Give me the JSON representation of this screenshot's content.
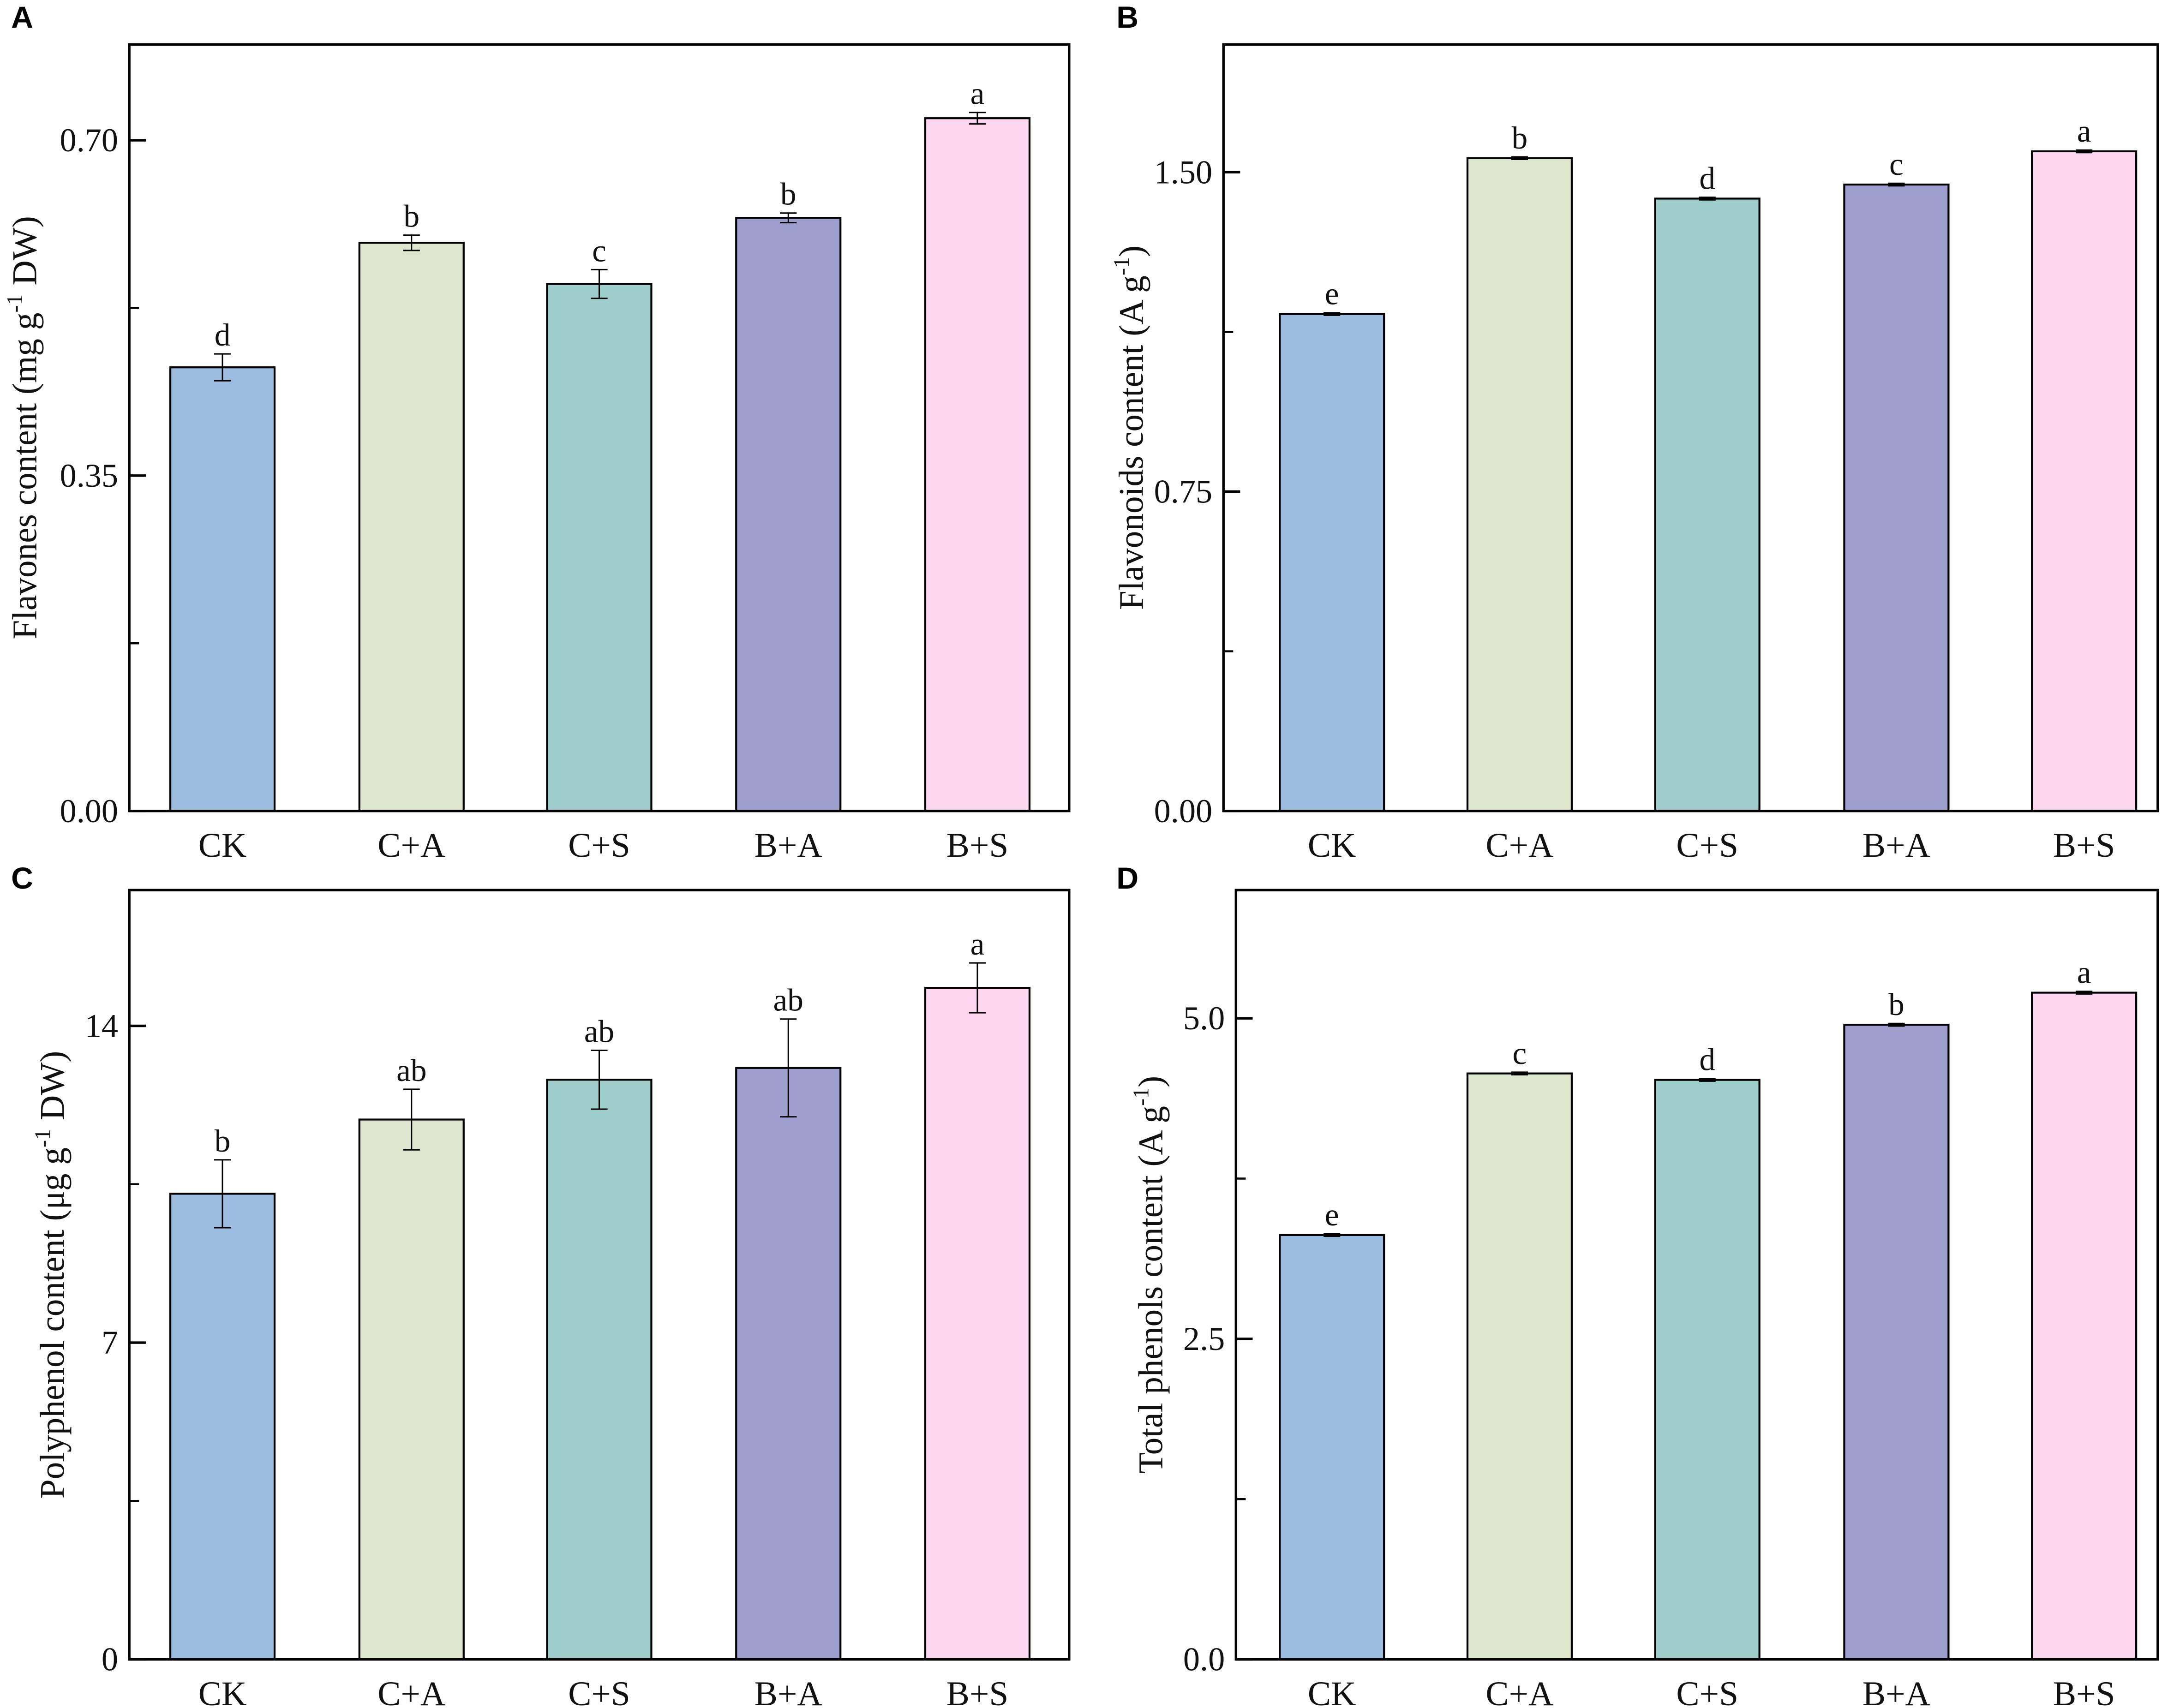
{
  "chart_data": [
    {
      "panel": "A",
      "type": "bar",
      "categories": [
        "CK",
        "C+A",
        "C+S",
        "B+A",
        "B+S"
      ],
      "values": [
        0.463,
        0.593,
        0.55,
        0.619,
        0.723
      ],
      "errors": [
        0.014,
        0.008,
        0.015,
        0.005,
        0.006
      ],
      "significance": [
        "d",
        "b",
        "c",
        "b",
        "a"
      ],
      "ylabel": {
        "pre": "Flavones content (mg g",
        "sup": "-1",
        "post": " DW)"
      },
      "xlabel": "",
      "ylim": [
        0,
        0.8
      ],
      "yticks": [
        0,
        0.35,
        0.7
      ],
      "ytick_labels": [
        "0.00",
        "0.35",
        "0.70"
      ],
      "minor_ticks": [
        0.175,
        0.525
      ],
      "grid": false
    },
    {
      "panel": "B",
      "type": "bar",
      "categories": [
        "CK",
        "C+A",
        "C+S",
        "B+A",
        "B+S"
      ],
      "values": [
        1.167,
        1.533,
        1.438,
        1.471,
        1.549
      ],
      "errors": [
        0.003,
        0.003,
        0.003,
        0.003,
        0.003
      ],
      "significance": [
        "e",
        "b",
        "d",
        "c",
        "a"
      ],
      "ylabel": {
        "pre": "Flavonoids content (A g",
        "sup": "-1",
        "post": ")"
      },
      "xlabel": "",
      "ylim": [
        0,
        1.8
      ],
      "yticks": [
        0,
        0.75,
        1.5
      ],
      "ytick_labels": [
        "0.00",
        "0.75",
        "1.50"
      ],
      "minor_ticks": [
        0.375,
        1.125
      ],
      "grid": false
    },
    {
      "panel": "C",
      "type": "bar",
      "categories": [
        "CK",
        "C+A",
        "C+S",
        "B+A",
        "B+S"
      ],
      "values": [
        10.29,
        11.93,
        12.81,
        13.07,
        14.84
      ],
      "errors": [
        0.75,
        0.67,
        0.65,
        1.08,
        0.55
      ],
      "significance": [
        "b",
        "ab",
        "ab",
        "ab",
        "a"
      ],
      "ylabel": {
        "pre": "Polyphenol content (μg g",
        "sup": "-1",
        "post": " DW)"
      },
      "xlabel": "",
      "ylim": [
        0,
        17
      ],
      "yticks": [
        0,
        7,
        14
      ],
      "ytick_labels": [
        "0",
        "7",
        "14"
      ],
      "minor_ticks": [
        3.5,
        10.5
      ],
      "grid": false
    },
    {
      "panel": "D",
      "type": "bar",
      "categories": [
        "CK",
        "C+A",
        "C+S",
        "B+A",
        "B+S"
      ],
      "values": [
        3.31,
        4.57,
        4.52,
        4.95,
        5.2
      ],
      "errors": [
        0.01,
        0.01,
        0.01,
        0.01,
        0.01
      ],
      "significance": [
        "e",
        "c",
        "d",
        "b",
        "a"
      ],
      "ylabel": {
        "pre": "Total phenols content (A g",
        "sup": "-1",
        "post": ")"
      },
      "xlabel": "",
      "ylim": [
        0,
        6
      ],
      "yticks": [
        0,
        2.5,
        5.0
      ],
      "ytick_labels": [
        "0.0",
        "2.5",
        "5.0"
      ],
      "minor_ticks": [
        1.25,
        3.75
      ],
      "grid": false
    }
  ],
  "colors": {
    "CK": "#9dbde0",
    "C+A": "#dfe6ce",
    "C+S": "#9ecdcc",
    "B+A": "#9e9ecf",
    "B+S": "#fbd6ee"
  }
}
